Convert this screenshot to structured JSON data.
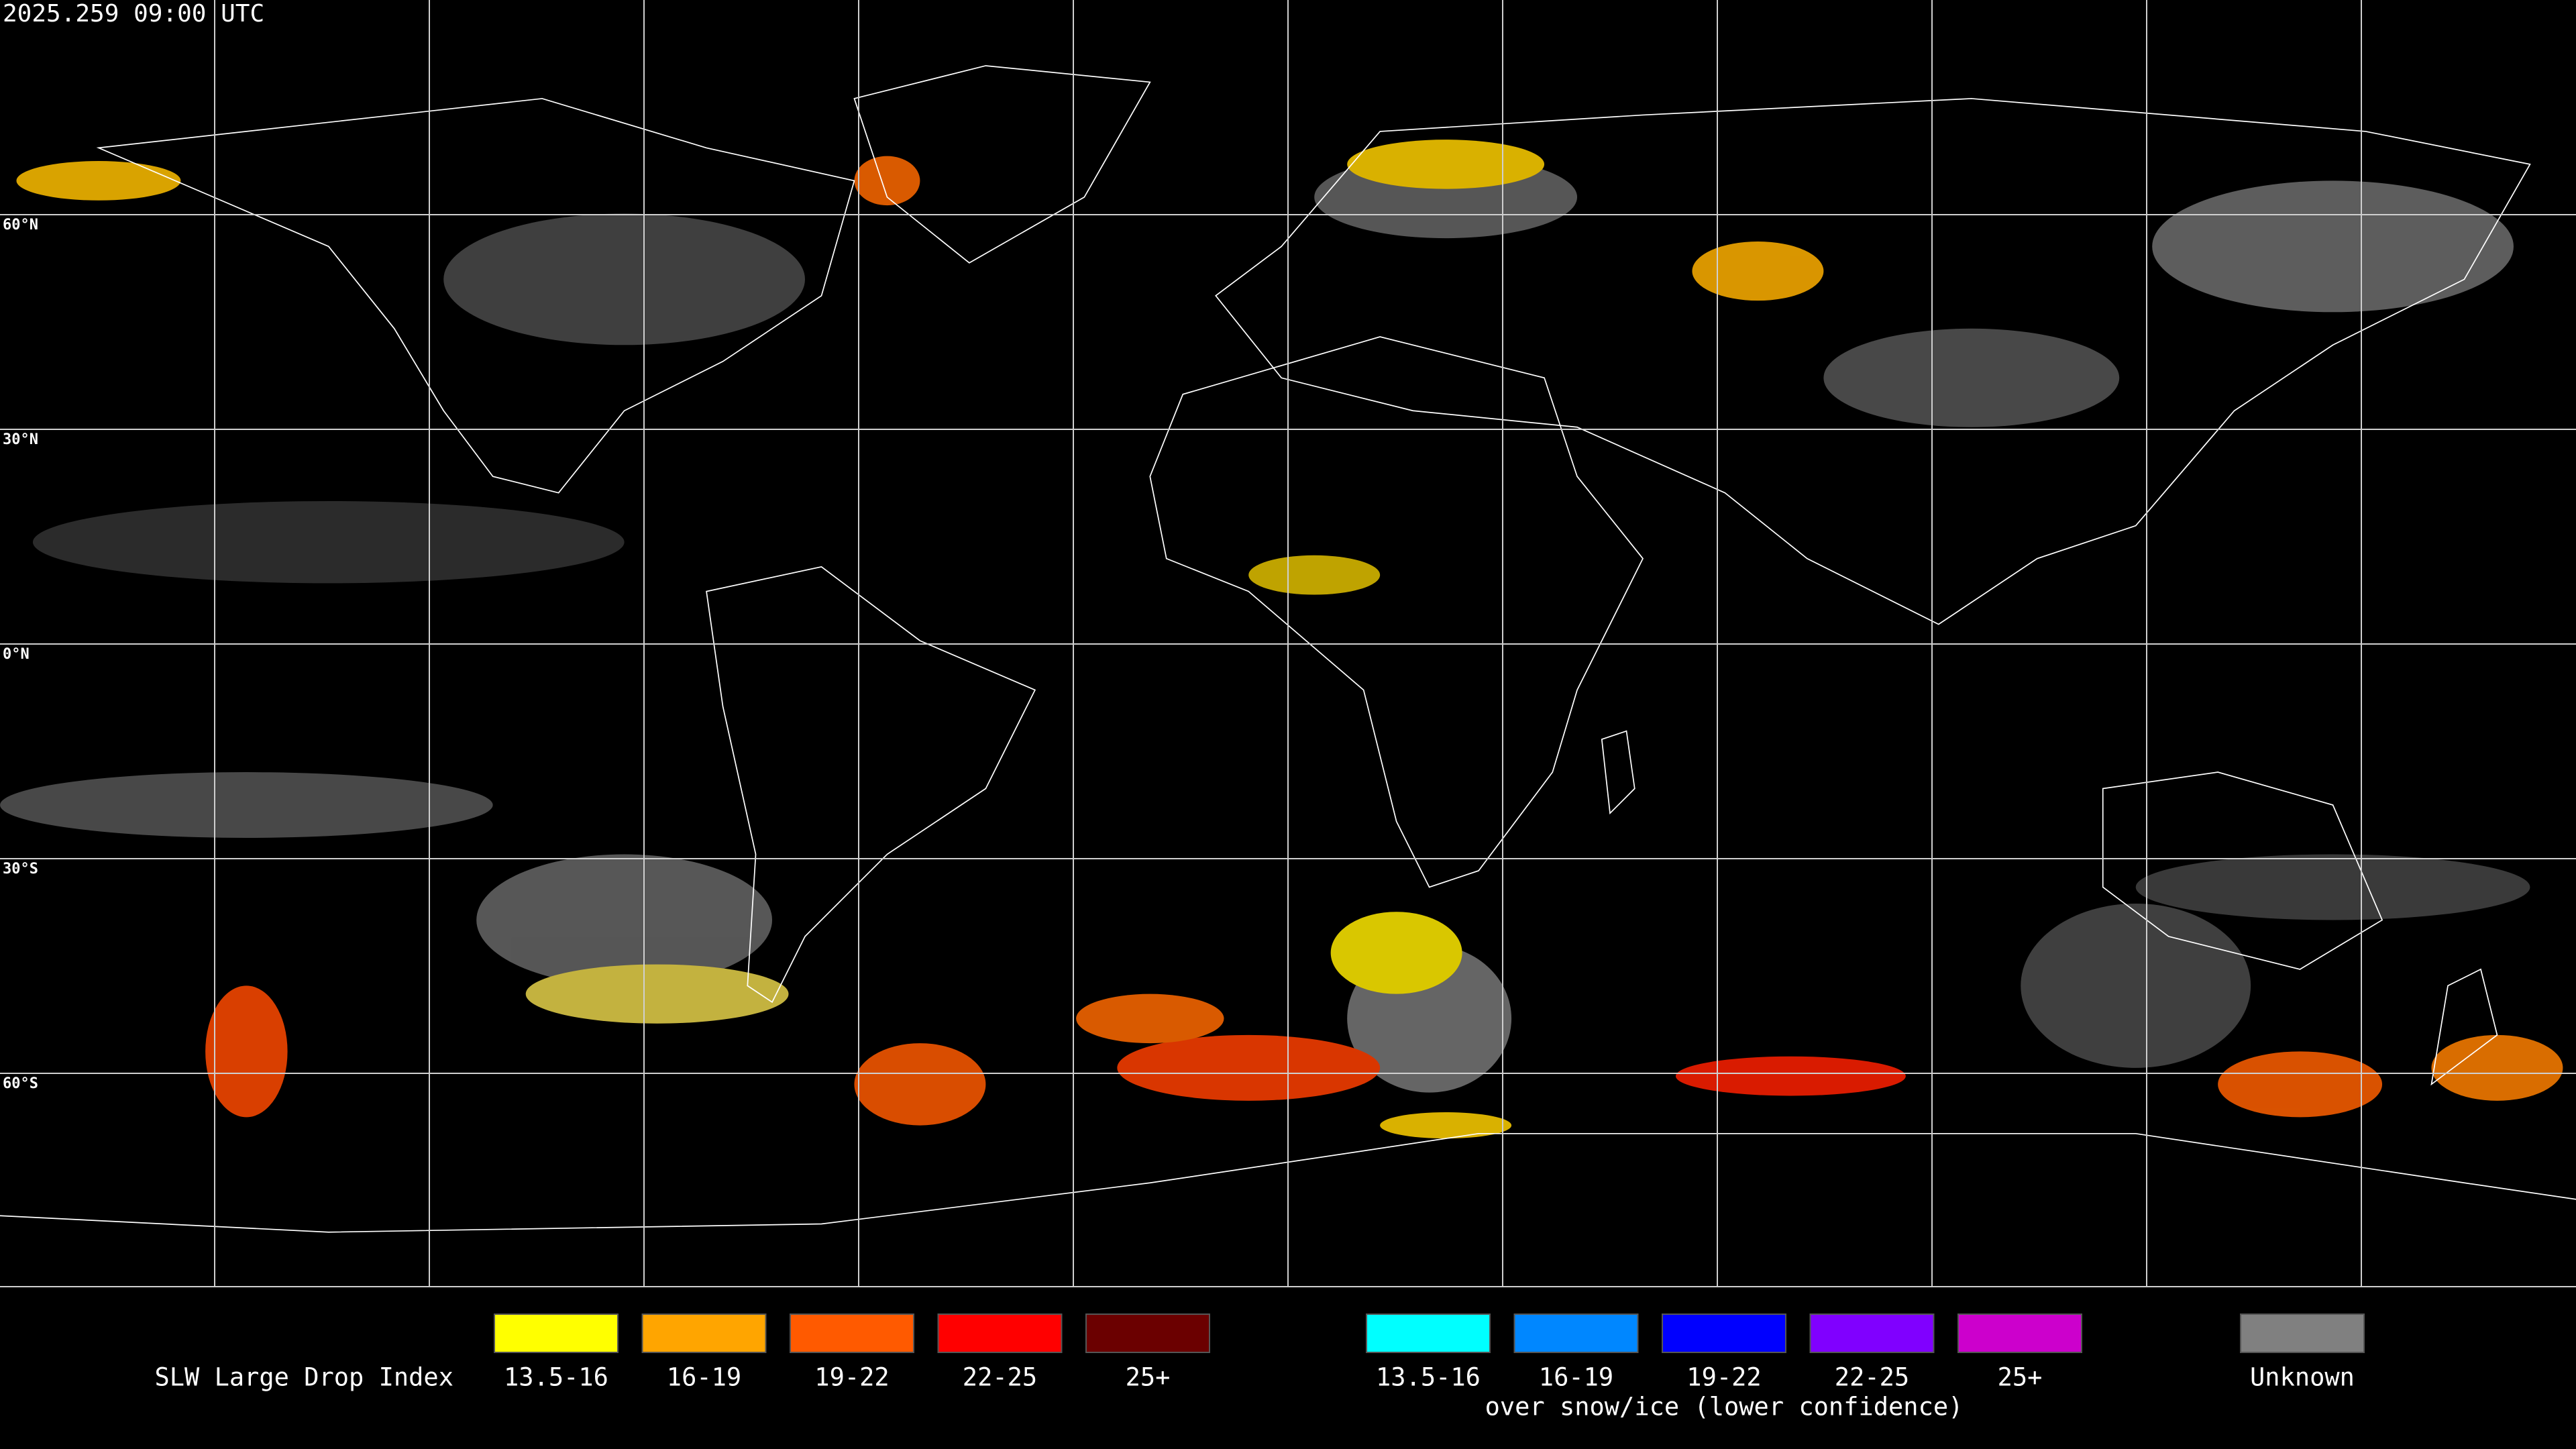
{
  "timestamp": "2025.259 09:00 UTC",
  "latitude_labels": [
    "60°N",
    "30°N",
    "0°N",
    "30°S",
    "60°S"
  ],
  "legend": {
    "title": "SLW Large Drop Index",
    "groups": [
      {
        "items": [
          {
            "label": "13.5-16",
            "color": "#ffff00"
          },
          {
            "label": "16-19",
            "color": "#ffa500"
          },
          {
            "label": "19-22",
            "color": "#ff5a00"
          },
          {
            "label": "22-25",
            "color": "#ff0000"
          },
          {
            "label": "25+",
            "color": "#6b0000"
          }
        ]
      },
      {
        "note": "over snow/ice (lower confidence)",
        "items": [
          {
            "label": "13.5-16",
            "color": "#00ffff"
          },
          {
            "label": "16-19",
            "color": "#0087ff"
          },
          {
            "label": "19-22",
            "color": "#0000ff"
          },
          {
            "label": "22-25",
            "color": "#8000ff"
          },
          {
            "label": "25+",
            "color": "#cc00cc"
          }
        ]
      },
      {
        "items": [
          {
            "label": "Unknown",
            "color": "#808080"
          }
        ]
      }
    ]
  }
}
